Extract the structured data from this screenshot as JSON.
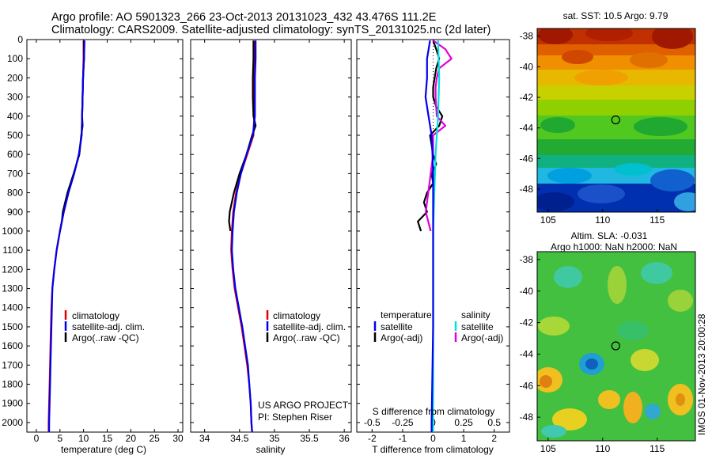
{
  "header": {
    "line1": "Argo profile: AO 5901323_266 23-Oct-2013 20131023_432 43.476S 111.2E",
    "line2": "Climatology: CARS2009. Satellite-adjusted climatology: synTS_20131025.nc (2d later)"
  },
  "colors": {
    "climatology": "#e00000",
    "satellite": "#0000ee",
    "argo": "#000000",
    "sal_satellite": "#00e0e0",
    "sal_argo": "#e000e0"
  },
  "depth_axis": {
    "range": [
      0,
      2050
    ],
    "ticks": [
      "0",
      "100",
      "200",
      "300",
      "400",
      "500",
      "600",
      "700",
      "800",
      "900",
      "1000",
      "1100",
      "1200",
      "1300",
      "1400",
      "1500",
      "1600",
      "1700",
      "1800",
      "1900",
      "2000"
    ]
  },
  "chart_data": [
    {
      "type": "line",
      "xlabel": "temperature (deg C)",
      "ylabel": "",
      "xlim": [
        -2,
        31
      ],
      "ylim": [
        2050,
        0
      ],
      "xticks": [
        "0",
        "5",
        "10",
        "15",
        "20",
        "25",
        "30"
      ],
      "legend": [
        "climatology",
        "satellite-adj. clim.",
        "Argo(..raw -QC)"
      ],
      "series": [
        {
          "name": "climatology",
          "depth": [
            5,
            100,
            200,
            300,
            400,
            500,
            600,
            700,
            800,
            900,
            1000,
            1100,
            1200,
            1300,
            1400,
            1500,
            1600,
            1700,
            1800,
            1900,
            2000,
            2050
          ],
          "values": [
            10.0,
            10.0,
            9.9,
            9.8,
            9.7,
            9.6,
            9.0,
            8.0,
            6.8,
            5.8,
            5.0,
            4.3,
            3.8,
            3.4,
            3.2,
            3.1,
            3.0,
            2.9,
            2.8,
            2.7,
            2.6,
            2.6
          ]
        },
        {
          "name": "satellite-adj. clim.",
          "depth": [
            5,
            100,
            200,
            300,
            400,
            500,
            600,
            700,
            800,
            900,
            1000,
            1100,
            1200,
            1300,
            1400,
            1500,
            1600,
            1700,
            1800,
            1900,
            2000,
            2050
          ],
          "values": [
            10.2,
            10.1,
            9.9,
            9.8,
            9.7,
            9.6,
            9.0,
            8.0,
            6.8,
            5.8,
            5.0,
            4.3,
            3.8,
            3.4,
            3.3,
            3.2,
            3.1,
            3.0,
            2.9,
            2.8,
            2.7,
            2.7
          ]
        },
        {
          "name": "Argo(..raw -QC)",
          "depth": [
            5,
            100,
            200,
            300,
            400,
            450,
            500,
            600,
            700,
            800,
            900,
            950,
            1000
          ],
          "values": [
            10.1,
            10.1,
            9.9,
            9.8,
            9.7,
            9.8,
            9.5,
            9.1,
            7.9,
            6.6,
            5.6,
            5.4,
            5.0
          ]
        }
      ]
    },
    {
      "type": "line",
      "xlabel": "salinity",
      "ylabel": "",
      "xlim": [
        33.8,
        36.1
      ],
      "ylim": [
        2050,
        0
      ],
      "xticks": [
        "34",
        "34.5",
        "35",
        "35.5",
        "36"
      ],
      "legend": [
        "climatology",
        "satellite-adj. clim.",
        "Argo(..raw -QC)"
      ],
      "annotation": [
        "US ARGO PROJECT",
        "PI: Stephen Riser"
      ],
      "series": [
        {
          "name": "climatology",
          "depth": [
            5,
            100,
            200,
            300,
            400,
            500,
            600,
            700,
            800,
            900,
            1000,
            1100,
            1200,
            1300,
            1400,
            1500,
            1600,
            1700,
            1800,
            1900,
            2000,
            2050
          ],
          "values": [
            34.72,
            34.71,
            34.7,
            34.7,
            34.71,
            34.7,
            34.61,
            34.52,
            34.45,
            34.41,
            34.39,
            34.38,
            34.4,
            34.43,
            34.48,
            34.53,
            34.57,
            34.61,
            34.64,
            34.66,
            34.67,
            34.68
          ]
        },
        {
          "name": "satellite-adj. clim.",
          "depth": [
            5,
            100,
            200,
            300,
            400,
            500,
            600,
            700,
            800,
            900,
            1000,
            1100,
            1200,
            1300,
            1400,
            1500,
            1600,
            1700,
            1800,
            1900,
            2000,
            2050
          ],
          "values": [
            34.73,
            34.73,
            34.72,
            34.72,
            34.72,
            34.69,
            34.6,
            34.52,
            34.46,
            34.42,
            34.4,
            34.39,
            34.41,
            34.44,
            34.49,
            34.54,
            34.58,
            34.62,
            34.64,
            34.66,
            34.67,
            34.68
          ]
        },
        {
          "name": "Argo(..raw -QC)",
          "depth": [
            5,
            100,
            200,
            300,
            400,
            450,
            500,
            600,
            700,
            800,
            900,
            950,
            1000
          ],
          "values": [
            34.7,
            34.7,
            34.69,
            34.69,
            34.7,
            34.73,
            34.68,
            34.6,
            34.5,
            34.42,
            34.36,
            34.35,
            34.37
          ]
        }
      ]
    },
    {
      "type": "line",
      "xlabel": "T difference from climatology",
      "xlabel_top": "S difference from climatology",
      "ylabel": "",
      "xlim": [
        -2.5,
        2.5
      ],
      "ylim": [
        2050,
        0
      ],
      "xticks": [
        "-2",
        "-1",
        "0",
        "1",
        "2"
      ],
      "xticks_top": [
        "-0.5",
        "-0.25",
        "0",
        "0.25",
        "0.5"
      ],
      "legend_titles": [
        "temperature",
        "salinity"
      ],
      "legend": [
        "satellite",
        "Argo(-adj)",
        "satellite",
        "Argo(-adj)"
      ],
      "series": [
        {
          "name": "satellite",
          "group": "temperature",
          "depth": [
            5,
            100,
            200,
            300,
            400,
            500,
            600,
            700,
            800,
            1000,
            1200,
            1500,
            2000,
            2050
          ],
          "values": [
            -0.1,
            -0.2,
            -0.2,
            -0.25,
            -0.15,
            -0.05,
            -0.02,
            0,
            0,
            0,
            0,
            0,
            -0.05,
            -0.05
          ]
        },
        {
          "name": "Argo(-adj)",
          "group": "temperature",
          "depth": [
            5,
            50,
            100,
            150,
            200,
            250,
            300,
            350,
            400,
            450,
            500,
            550,
            600,
            650,
            700,
            750,
            800,
            850,
            900,
            950,
            1000
          ],
          "values": [
            0.0,
            0.1,
            0.2,
            0.1,
            0.05,
            0.0,
            0.0,
            0.1,
            0.3,
            0.2,
            -0.1,
            -0.05,
            0.0,
            0.1,
            -0.05,
            0.0,
            -0.2,
            -0.3,
            -0.2,
            -0.5,
            -0.4
          ]
        },
        {
          "name": "satellite",
          "group": "salinity",
          "depth": [
            5,
            200,
            400,
            600,
            800,
            1000,
            1500,
            2000,
            2050
          ],
          "values": [
            0.04,
            0.05,
            0.04,
            0.02,
            0.01,
            0.0,
            0.0,
            0.0,
            0.0
          ]
        },
        {
          "name": "Argo(-adj)",
          "group": "salinity",
          "depth": [
            5,
            50,
            100,
            150,
            200,
            250,
            300,
            400,
            450,
            500,
            600,
            700,
            800,
            900,
            950,
            1000
          ],
          "values": [
            0.0,
            0.1,
            0.15,
            0.05,
            0.03,
            0.02,
            0.02,
            0.03,
            0.1,
            0.0,
            0.0,
            -0.02,
            -0.04,
            -0.06,
            -0.04,
            -0.02
          ]
        }
      ]
    },
    {
      "type": "heatmap",
      "title": "sat. SST: 10.5 Argo: 9.79",
      "xlim": [
        104,
        118.5
      ],
      "ylim": [
        -49.5,
        -37.5
      ],
      "xticks": [
        "105",
        "110",
        "115"
      ],
      "yticks": [
        "-38",
        "-40",
        "-42",
        "-44",
        "-46",
        "-48"
      ],
      "marker": {
        "lon": 111.2,
        "lat": -43.476
      }
    },
    {
      "type": "heatmap",
      "title": "Altim. SLA: -0.031",
      "subtitle": "Argo h1000: NaN h2000: NaN",
      "xlim": [
        104,
        118.5
      ],
      "ylim": [
        -49.5,
        -37.5
      ],
      "xticks": [
        "105",
        "110",
        "115"
      ],
      "yticks": [
        "-38",
        "-40",
        "-42",
        "-44",
        "-46",
        "-48"
      ],
      "marker": {
        "lon": 111.2,
        "lat": -43.476
      },
      "credit": "IMOS 01-Nov-2013 20:00:28"
    }
  ]
}
